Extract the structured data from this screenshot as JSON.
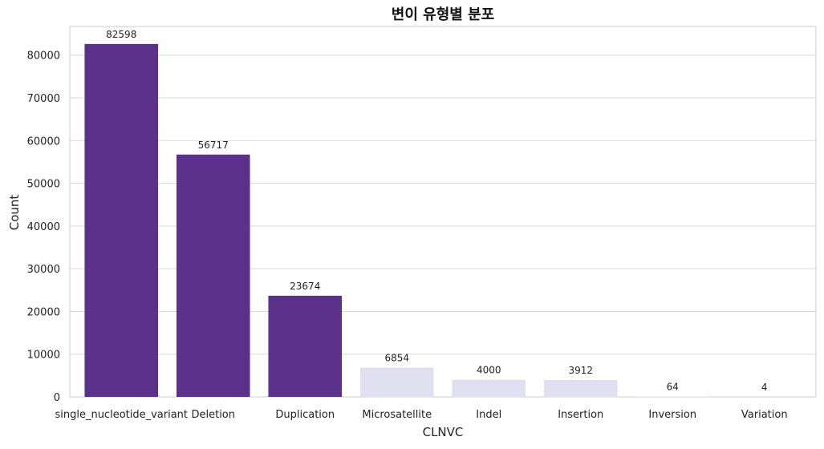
{
  "chart_data": {
    "type": "bar",
    "title": "변이 유형별 분포",
    "xlabel": "CLNVC",
    "ylabel": "Count",
    "categories": [
      "single_nucleotide_variant",
      "Deletion",
      "Duplication",
      "Microsatellite",
      "Indel",
      "Insertion",
      "Inversion",
      "Variation"
    ],
    "values": [
      82598,
      56717,
      23674,
      6854,
      4000,
      3912,
      64,
      4
    ],
    "data_labels": [
      "82598",
      "56717",
      "23674",
      "6854",
      "4000",
      "3912",
      "64",
      "4"
    ],
    "ylim": [
      0,
      86700
    ],
    "yticks": [
      0,
      10000,
      20000,
      30000,
      40000,
      50000,
      60000,
      70000,
      80000
    ],
    "ytick_labels": [
      "0",
      "10000",
      "20000",
      "30000",
      "40000",
      "50000",
      "60000",
      "70000",
      "80000"
    ],
    "grid": true,
    "bar_colors": [
      "#5b318c",
      "#5b318c",
      "#5b318c",
      "#e1e0f0",
      "#e1e0f0",
      "#e1e0f0",
      "#e1e0f0",
      "#e1e0f0"
    ]
  }
}
